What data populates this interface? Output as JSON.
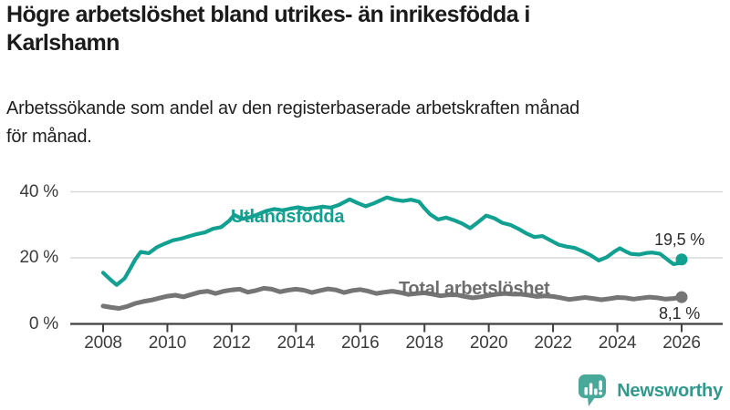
{
  "header": {
    "title_line1": "Högre arbetslöshet bland utrikes- än inrikesfödda i",
    "title_line2": "Karlshamn",
    "subtitle_line1": "Arbetssökande som andel av den registerbaserade arbetskraften månad",
    "subtitle_line2": "för månad."
  },
  "chart_data": {
    "type": "line",
    "title": "Högre arbetslöshet bland utrikes- än inrikesfödda i Karlshamn",
    "subtitle": "Arbetssökande som andel av den registerbaserade arbetskraften månad för månad.",
    "xlabel": "",
    "ylabel": "",
    "xlim": [
      2008,
      2026
    ],
    "ylim": [
      0,
      44
    ],
    "grid": "horizontal-only",
    "legend": "inline-labels-on-lines",
    "y_ticks": [
      {
        "value": 0,
        "label": "0 %"
      },
      {
        "value": 20,
        "label": "20 %"
      },
      {
        "value": 40,
        "label": "40 %"
      }
    ],
    "x_ticks": [
      {
        "value": 2008,
        "label": "2008"
      },
      {
        "value": 2010,
        "label": "2010"
      },
      {
        "value": 2012,
        "label": "2012"
      },
      {
        "value": 2014,
        "label": "2014"
      },
      {
        "value": 2016,
        "label": "2016"
      },
      {
        "value": 2018,
        "label": "2018"
      },
      {
        "value": 2020,
        "label": "2020"
      },
      {
        "value": 2022,
        "label": "2022"
      },
      {
        "value": 2024,
        "label": "2024"
      },
      {
        "value": 2026,
        "label": "2026"
      }
    ],
    "series": [
      {
        "name": "Utlandsfödda",
        "color": "#12a091",
        "end_value": 19.5,
        "end_label": "19,5 %",
        "points": [
          [
            2008.0,
            15.5
          ],
          [
            2008.25,
            13.2
          ],
          [
            2008.42,
            11.8
          ],
          [
            2008.67,
            13.8
          ],
          [
            2008.83,
            16.5
          ],
          [
            2009.0,
            19.5
          ],
          [
            2009.17,
            21.8
          ],
          [
            2009.42,
            21.4
          ],
          [
            2009.67,
            23.2
          ],
          [
            2009.92,
            24.3
          ],
          [
            2010.17,
            25.3
          ],
          [
            2010.42,
            25.8
          ],
          [
            2010.67,
            26.5
          ],
          [
            2010.92,
            27.2
          ],
          [
            2011.17,
            27.7
          ],
          [
            2011.42,
            28.8
          ],
          [
            2011.67,
            29.3
          ],
          [
            2011.92,
            31.2
          ],
          [
            2012.08,
            33.0
          ],
          [
            2012.33,
            31.8
          ],
          [
            2012.58,
            32.3
          ],
          [
            2012.83,
            33.2
          ],
          [
            2013.08,
            34.2
          ],
          [
            2013.33,
            34.8
          ],
          [
            2013.58,
            34.4
          ],
          [
            2013.83,
            34.9
          ],
          [
            2014.08,
            35.3
          ],
          [
            2014.33,
            34.8
          ],
          [
            2014.58,
            35.1
          ],
          [
            2014.83,
            35.5
          ],
          [
            2015.08,
            35.2
          ],
          [
            2015.33,
            36.0
          ],
          [
            2015.67,
            37.7
          ],
          [
            2015.92,
            36.6
          ],
          [
            2016.17,
            35.6
          ],
          [
            2016.42,
            36.5
          ],
          [
            2016.67,
            37.6
          ],
          [
            2016.83,
            38.3
          ],
          [
            2017.08,
            37.6
          ],
          [
            2017.33,
            37.2
          ],
          [
            2017.58,
            37.6
          ],
          [
            2017.83,
            37.0
          ],
          [
            2018.0,
            35.0
          ],
          [
            2018.17,
            33.2
          ],
          [
            2018.42,
            31.6
          ],
          [
            2018.67,
            32.2
          ],
          [
            2018.92,
            31.4
          ],
          [
            2019.17,
            30.4
          ],
          [
            2019.42,
            29.0
          ],
          [
            2019.67,
            30.8
          ],
          [
            2019.92,
            32.8
          ],
          [
            2020.17,
            32.0
          ],
          [
            2020.42,
            30.6
          ],
          [
            2020.67,
            30.0
          ],
          [
            2020.92,
            28.8
          ],
          [
            2021.17,
            27.4
          ],
          [
            2021.42,
            26.3
          ],
          [
            2021.67,
            26.6
          ],
          [
            2021.92,
            25.3
          ],
          [
            2022.17,
            24.0
          ],
          [
            2022.42,
            23.4
          ],
          [
            2022.67,
            23.0
          ],
          [
            2022.92,
            22.0
          ],
          [
            2023.17,
            20.8
          ],
          [
            2023.42,
            19.2
          ],
          [
            2023.67,
            20.2
          ],
          [
            2023.92,
            22.0
          ],
          [
            2024.08,
            22.9
          ],
          [
            2024.25,
            22.0
          ],
          [
            2024.42,
            21.2
          ],
          [
            2024.67,
            21.0
          ],
          [
            2024.92,
            21.5
          ],
          [
            2025.08,
            21.6
          ],
          [
            2025.33,
            21.2
          ],
          [
            2025.58,
            19.3
          ],
          [
            2025.75,
            18.1
          ],
          [
            2025.92,
            18.4
          ],
          [
            2026.0,
            19.5
          ]
        ]
      },
      {
        "name": "Total arbetslöshet",
        "color": "#757575",
        "label_color": "#6e6e6e",
        "end_value": 8.1,
        "end_label": "8,1 %",
        "points": [
          [
            2008.0,
            5.4
          ],
          [
            2008.25,
            5.0
          ],
          [
            2008.5,
            4.7
          ],
          [
            2008.75,
            5.3
          ],
          [
            2009.0,
            6.2
          ],
          [
            2009.25,
            6.8
          ],
          [
            2009.5,
            7.2
          ],
          [
            2009.75,
            7.8
          ],
          [
            2010.0,
            8.4
          ],
          [
            2010.25,
            8.7
          ],
          [
            2010.5,
            8.2
          ],
          [
            2010.75,
            8.9
          ],
          [
            2011.0,
            9.6
          ],
          [
            2011.25,
            9.9
          ],
          [
            2011.5,
            9.2
          ],
          [
            2011.75,
            9.9
          ],
          [
            2012.0,
            10.3
          ],
          [
            2012.25,
            10.5
          ],
          [
            2012.5,
            9.6
          ],
          [
            2012.75,
            10.1
          ],
          [
            2013.0,
            10.8
          ],
          [
            2013.25,
            10.5
          ],
          [
            2013.5,
            9.7
          ],
          [
            2013.75,
            10.2
          ],
          [
            2014.0,
            10.5
          ],
          [
            2014.25,
            10.2
          ],
          [
            2014.5,
            9.5
          ],
          [
            2014.75,
            10.1
          ],
          [
            2015.0,
            10.6
          ],
          [
            2015.25,
            10.3
          ],
          [
            2015.5,
            9.5
          ],
          [
            2015.75,
            10.1
          ],
          [
            2016.0,
            10.4
          ],
          [
            2016.25,
            9.9
          ],
          [
            2016.5,
            9.2
          ],
          [
            2016.75,
            9.6
          ],
          [
            2017.0,
            9.9
          ],
          [
            2017.25,
            9.5
          ],
          [
            2017.5,
            8.9
          ],
          [
            2017.75,
            9.2
          ],
          [
            2018.0,
            9.4
          ],
          [
            2018.25,
            9.0
          ],
          [
            2018.5,
            8.5
          ],
          [
            2018.75,
            8.8
          ],
          [
            2019.0,
            8.8
          ],
          [
            2019.25,
            8.3
          ],
          [
            2019.5,
            7.9
          ],
          [
            2019.75,
            8.2
          ],
          [
            2020.0,
            8.6
          ],
          [
            2020.25,
            9.0
          ],
          [
            2020.5,
            9.2
          ],
          [
            2020.75,
            9.0
          ],
          [
            2021.0,
            9.0
          ],
          [
            2021.25,
            8.7
          ],
          [
            2021.5,
            8.3
          ],
          [
            2021.75,
            8.5
          ],
          [
            2022.0,
            8.3
          ],
          [
            2022.25,
            7.9
          ],
          [
            2022.5,
            7.4
          ],
          [
            2022.75,
            7.7
          ],
          [
            2023.0,
            8.0
          ],
          [
            2023.25,
            7.7
          ],
          [
            2023.5,
            7.3
          ],
          [
            2023.75,
            7.6
          ],
          [
            2024.0,
            8.0
          ],
          [
            2024.25,
            7.9
          ],
          [
            2024.5,
            7.5
          ],
          [
            2024.75,
            7.8
          ],
          [
            2025.0,
            8.1
          ],
          [
            2025.25,
            7.9
          ],
          [
            2025.5,
            7.5
          ],
          [
            2025.75,
            7.7
          ],
          [
            2026.0,
            8.1
          ]
        ]
      }
    ]
  },
  "footer": {
    "brand": "Newsworthy",
    "logo_icon": "bar-chart-speech-bubble"
  },
  "colors": {
    "accent_teal": "#12a091",
    "line_gray": "#757575",
    "title_text": "#1b1b1b",
    "axis_text": "#3b3b3b",
    "gridline": "#d9d9d9",
    "axis_line": "#3f3f3f",
    "value_text": "#2b2b2b",
    "logo_box_teal": "#48a89a",
    "wordmark_teal": "#2f998c"
  }
}
